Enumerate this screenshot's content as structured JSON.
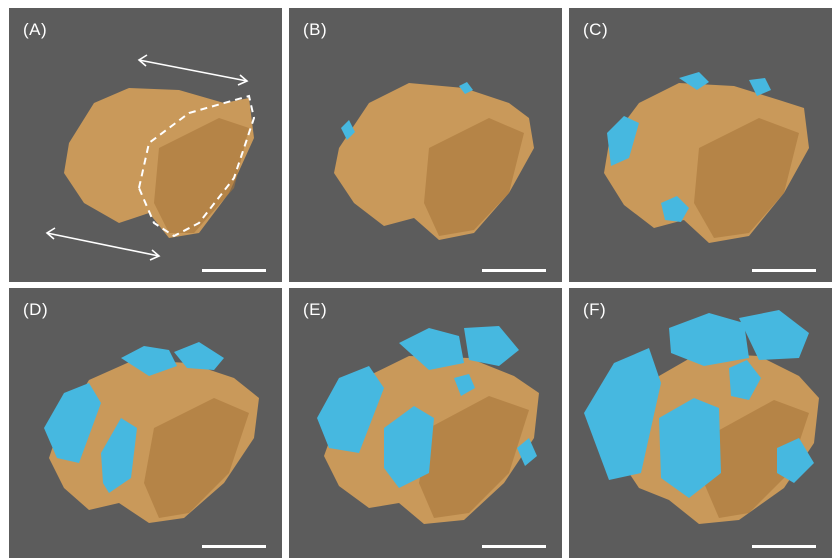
{
  "figure": {
    "panels": [
      {
        "label": "(A)",
        "crystals": "none",
        "annotation": "dashed-outline-and-arrows"
      },
      {
        "label": "(B)",
        "crystals": "few-small"
      },
      {
        "label": "(C)",
        "crystals": "several-small"
      },
      {
        "label": "(D)",
        "crystals": "medium"
      },
      {
        "label": "(E)",
        "crystals": "many"
      },
      {
        "label": "(F)",
        "crystals": "large-covering"
      }
    ]
  },
  "colors": {
    "background": "#ffffff",
    "sem_background": "#5c5c5c",
    "substrate": "#c9995a",
    "substrate_shade": "#9c6e33",
    "crystal": "#46b8e0",
    "crystal_light": "#8fd9f2",
    "annotation": "#ffffff"
  }
}
